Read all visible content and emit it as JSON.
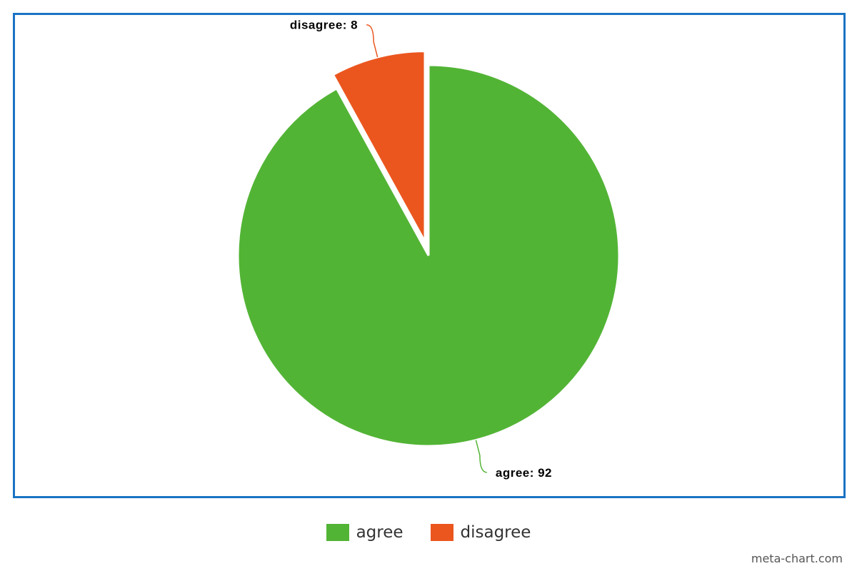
{
  "chart_data": {
    "type": "pie",
    "title": "",
    "categories": [
      "agree",
      "disagree"
    ],
    "values": [
      92,
      8
    ],
    "colors": [
      "#52b435",
      "#eb561f"
    ],
    "data_labels": [
      "agree: 92",
      "disagree: 8"
    ],
    "exploded": "disagree",
    "legend": {
      "placement": "bottom-center",
      "items": [
        {
          "label": "agree",
          "color": "#52b435"
        },
        {
          "label": "disagree",
          "color": "#eb561f"
        }
      ]
    }
  },
  "frame_color": "#1a73c4",
  "watermark": "meta-chart.com"
}
